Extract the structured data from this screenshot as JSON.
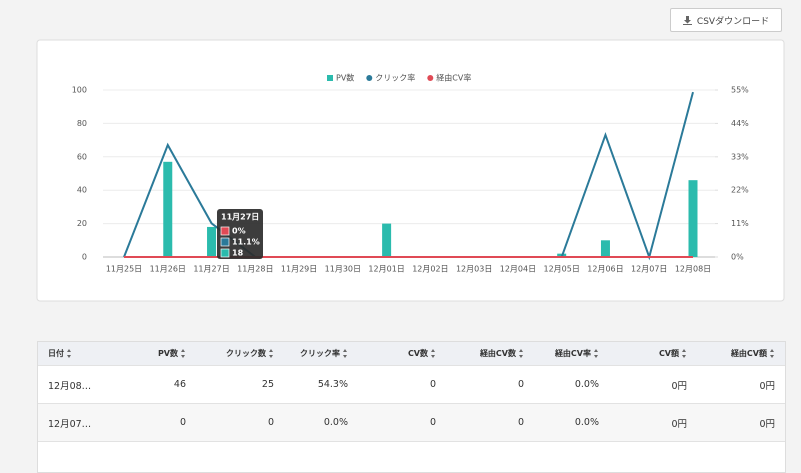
{
  "csv_button": "CSVダウンロード",
  "chart_data": {
    "type": "bar",
    "categories": [
      "11月25日",
      "11月26日",
      "11月27日",
      "11月28日",
      "11月29日",
      "11月30日",
      "12月01日",
      "12月02日",
      "12月03日",
      "12月04日",
      "12月05日",
      "12月06日",
      "12月07日",
      "12月08日"
    ],
    "series": [
      {
        "name": "PV数",
        "type": "bar",
        "color": "#2bbbad",
        "values": [
          0,
          57,
          18,
          0,
          0,
          0,
          20,
          0,
          0,
          0,
          2,
          10,
          0,
          46
        ]
      },
      {
        "name": "クリック率",
        "type": "line",
        "axis": "y2",
        "color": "#2b7a99",
        "values": [
          0,
          36.9,
          11.1,
          0,
          0,
          0,
          0,
          0,
          0,
          0,
          0,
          40.2,
          0,
          54.3
        ]
      },
      {
        "name": "経由CV率",
        "type": "line",
        "axis": "y2",
        "color": "#e04a55",
        "values": [
          0,
          0,
          0,
          0,
          0,
          0,
          0,
          0,
          0,
          0,
          0,
          0,
          0,
          0
        ]
      }
    ],
    "ylim": [
      0,
      100
    ],
    "yticks": [
      0,
      20,
      40,
      60,
      80,
      100
    ],
    "y2lim": [
      0,
      55
    ],
    "y2ticks": [
      {
        "value": 0,
        "label": "0%"
      },
      {
        "value": 11,
        "label": "11%"
      },
      {
        "value": 22,
        "label": "22%"
      },
      {
        "value": 33,
        "label": "33%"
      },
      {
        "value": 44,
        "label": "44%"
      },
      {
        "value": 55,
        "label": "55%"
      }
    ],
    "grid": true,
    "legend": "top",
    "tooltip": {
      "title": "11月27日",
      "items": [
        "0%",
        "11.1%",
        "18"
      ]
    }
  },
  "table": {
    "headers": [
      "日付",
      "PV数",
      "クリック数",
      "クリック率",
      "CV数",
      "経由CV数",
      "経由CV率",
      "CV額",
      "経由CV額"
    ],
    "rows": [
      [
        "12月08…",
        "46",
        "25",
        "54.3%",
        "0",
        "0",
        "0.0%",
        "0円",
        "0円"
      ],
      [
        "12月07…",
        "0",
        "0",
        "0.0%",
        "0",
        "0",
        "0.0%",
        "0円",
        "0円"
      ]
    ]
  }
}
